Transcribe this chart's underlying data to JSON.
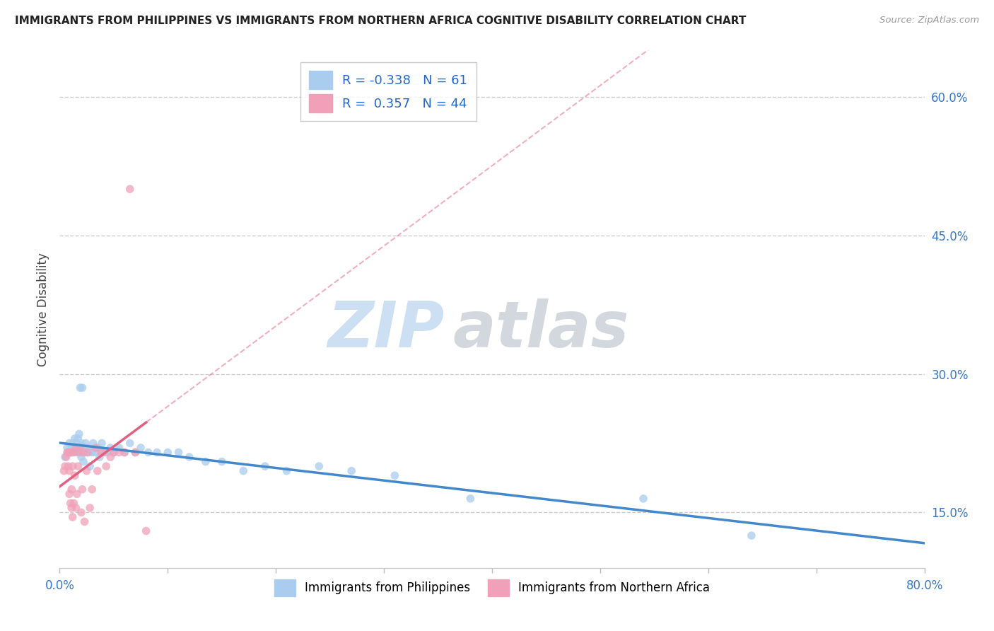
{
  "title": "IMMIGRANTS FROM PHILIPPINES VS IMMIGRANTS FROM NORTHERN AFRICA COGNITIVE DISABILITY CORRELATION CHART",
  "source": "Source: ZipAtlas.com",
  "ylabel": "Cognitive Disability",
  "xlim": [
    0.0,
    0.8
  ],
  "ylim": [
    0.09,
    0.65
  ],
  "yticks": [
    0.15,
    0.3,
    0.45,
    0.6
  ],
  "ytick_labels": [
    "15.0%",
    "30.0%",
    "45.0%",
    "60.0%"
  ],
  "background_color": "#ffffff",
  "grid_color": "#cccccc",
  "series_philippines": {
    "name": "Immigrants from Philippines",
    "R": -0.338,
    "N": 61,
    "scatter_color": "#aaccee",
    "trend_color": "#4488cc",
    "x": [
      0.005,
      0.007,
      0.008,
      0.009,
      0.01,
      0.011,
      0.012,
      0.013,
      0.014,
      0.015,
      0.016,
      0.016,
      0.017,
      0.017,
      0.018,
      0.018,
      0.019,
      0.019,
      0.02,
      0.02,
      0.021,
      0.021,
      0.022,
      0.022,
      0.023,
      0.024,
      0.025,
      0.026,
      0.027,
      0.028,
      0.03,
      0.031,
      0.033,
      0.035,
      0.037,
      0.039,
      0.042,
      0.044,
      0.047,
      0.05,
      0.055,
      0.06,
      0.065,
      0.07,
      0.075,
      0.082,
      0.09,
      0.1,
      0.11,
      0.12,
      0.135,
      0.15,
      0.17,
      0.19,
      0.21,
      0.24,
      0.27,
      0.31,
      0.38,
      0.54,
      0.64
    ],
    "y": [
      0.21,
      0.22,
      0.215,
      0.225,
      0.215,
      0.22,
      0.225,
      0.22,
      0.23,
      0.215,
      0.22,
      0.225,
      0.215,
      0.23,
      0.22,
      0.235,
      0.215,
      0.285,
      0.21,
      0.225,
      0.215,
      0.285,
      0.205,
      0.22,
      0.215,
      0.225,
      0.215,
      0.22,
      0.215,
      0.2,
      0.215,
      0.225,
      0.215,
      0.22,
      0.21,
      0.225,
      0.215,
      0.215,
      0.22,
      0.215,
      0.22,
      0.215,
      0.225,
      0.215,
      0.22,
      0.215,
      0.215,
      0.215,
      0.215,
      0.21,
      0.205,
      0.205,
      0.195,
      0.2,
      0.195,
      0.2,
      0.195,
      0.19,
      0.165,
      0.165,
      0.125
    ]
  },
  "series_africa": {
    "name": "Immigrants from Northern Africa",
    "R": 0.357,
    "N": 44,
    "scatter_color": "#f0a0b8",
    "trend_color": "#e06080",
    "x": [
      0.004,
      0.005,
      0.006,
      0.007,
      0.008,
      0.008,
      0.009,
      0.009,
      0.01,
      0.01,
      0.011,
      0.011,
      0.011,
      0.012,
      0.012,
      0.013,
      0.013,
      0.014,
      0.015,
      0.015,
      0.016,
      0.017,
      0.018,
      0.019,
      0.02,
      0.021,
      0.022,
      0.023,
      0.025,
      0.026,
      0.028,
      0.03,
      0.033,
      0.035,
      0.038,
      0.04,
      0.043,
      0.047,
      0.05,
      0.055,
      0.06,
      0.065,
      0.07,
      0.08
    ],
    "y": [
      0.195,
      0.2,
      0.21,
      0.215,
      0.2,
      0.215,
      0.17,
      0.195,
      0.16,
      0.215,
      0.155,
      0.175,
      0.215,
      0.145,
      0.2,
      0.215,
      0.16,
      0.19,
      0.155,
      0.22,
      0.17,
      0.2,
      0.215,
      0.22,
      0.15,
      0.175,
      0.215,
      0.14,
      0.195,
      0.215,
      0.155,
      0.175,
      0.22,
      0.195,
      0.215,
      0.215,
      0.2,
      0.21,
      0.215,
      0.215,
      0.215,
      0.5,
      0.215,
      0.13
    ]
  }
}
